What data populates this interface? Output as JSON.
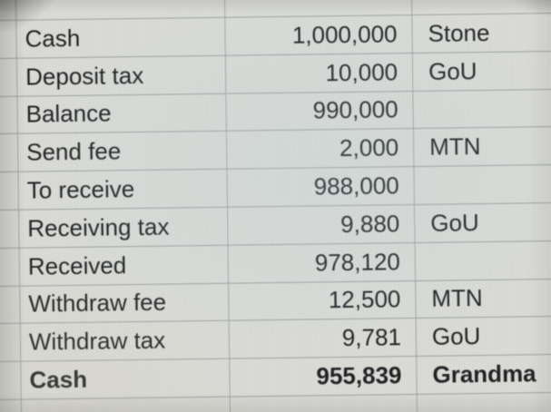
{
  "sheet": {
    "rows": [
      {
        "label": "Cash",
        "amount": "1,000,000",
        "party": "Stone",
        "bold": false
      },
      {
        "label": "Deposit tax",
        "amount": "10,000",
        "party": "GoU",
        "bold": false
      },
      {
        "label": "Balance",
        "amount": "990,000",
        "party": "",
        "bold": false
      },
      {
        "label": "Send fee",
        "amount": "2,000",
        "party": "MTN",
        "bold": false
      },
      {
        "label": "To receive",
        "amount": "988,000",
        "party": "",
        "bold": false
      },
      {
        "label": "Receiving tax",
        "amount": "9,880",
        "party": "GoU",
        "bold": false
      },
      {
        "label": "Received",
        "amount": "978,120",
        "party": "",
        "bold": false
      },
      {
        "label": "Withdraw fee",
        "amount": "12,500",
        "party": "MTN",
        "bold": false
      },
      {
        "label": "Withdraw tax",
        "amount": "9,781",
        "party": "GoU",
        "bold": false
      },
      {
        "label": "Cash",
        "amount": "955,839",
        "party": "Grandma",
        "bold": true
      }
    ]
  },
  "colors": {
    "background": "#d7d8d3",
    "gridline": "#9aa09e",
    "text": "#202224"
  }
}
